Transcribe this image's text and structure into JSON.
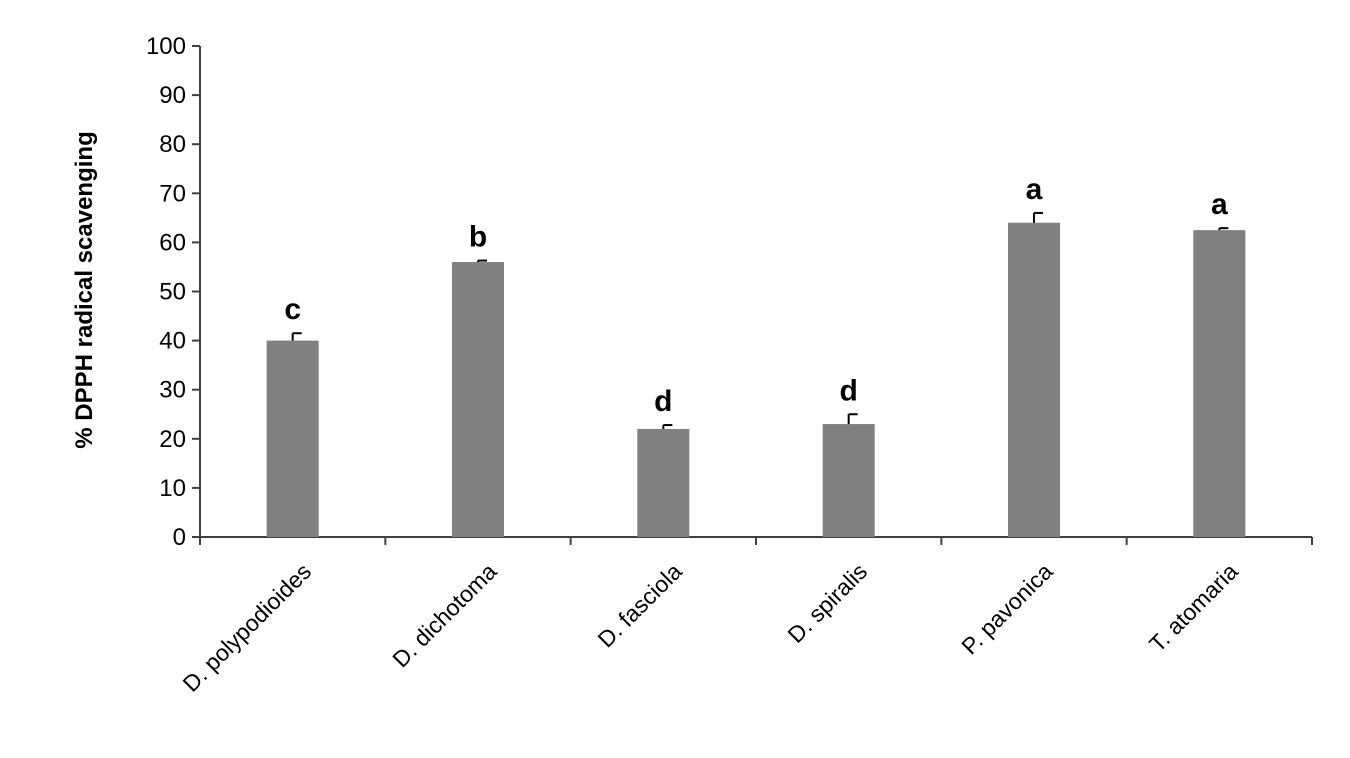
{
  "chart_data": {
    "type": "bar",
    "title": "",
    "xlabel": "",
    "ylabel": "% DPPH radical scavenging",
    "ylim": [
      0,
      100
    ],
    "yticks": [
      "0",
      "10",
      "20",
      "30",
      "40",
      "50",
      "60",
      "70",
      "80",
      "90",
      "100"
    ],
    "grid": false,
    "categories": [
      "D. polypodioides",
      "D. dichotoma",
      "D. fasciola",
      "D. spiralis",
      "P. pavonica",
      "T. atomaria"
    ],
    "values": [
      40,
      56,
      22,
      23,
      64,
      62.5
    ],
    "errors": [
      1.5,
      0.3,
      0.8,
      2.0,
      2.0,
      0.4
    ],
    "significance": [
      "c",
      "b",
      "d",
      "d",
      "a",
      "a"
    ],
    "colors": {
      "bar": "#808080",
      "axis": "#404040"
    }
  }
}
